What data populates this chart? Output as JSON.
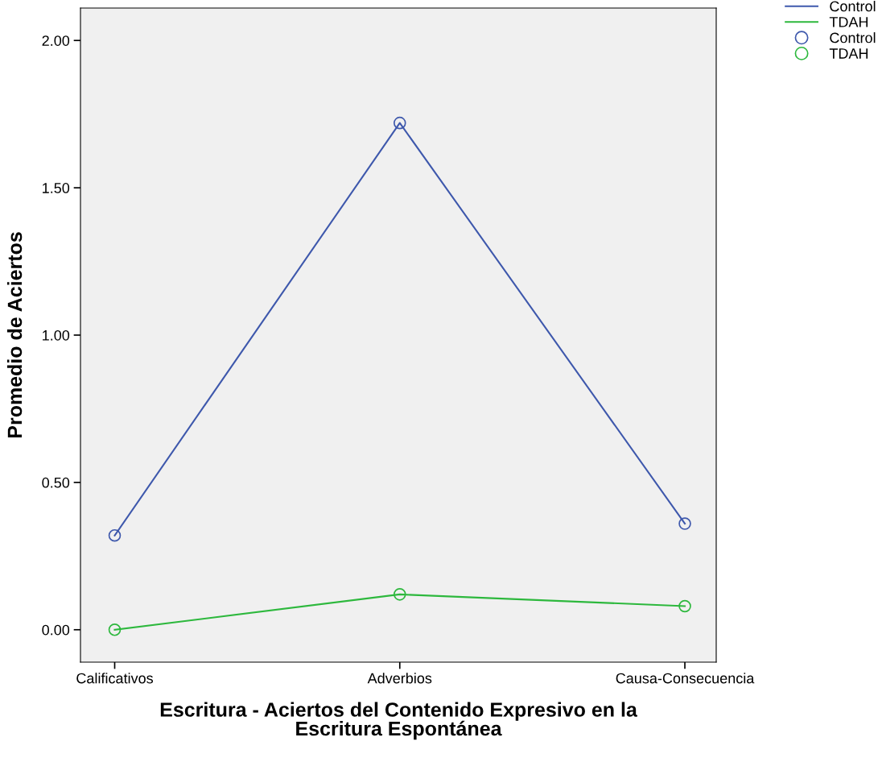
{
  "chart_data": {
    "type": "line",
    "xlabel": "Escritura - Aciertos del Contenido Expresivo en la\nEscritura Espontánea",
    "ylabel": "Promedio de Aciertos",
    "categories": [
      "Calificativos",
      "Adverbios",
      "Causa-Consecuencia"
    ],
    "series": [
      {
        "name": "Control",
        "color": "#3e58ac",
        "values": [
          0.32,
          1.72,
          0.36
        ]
      },
      {
        "name": "TDAH",
        "color": "#2db83d",
        "values": [
          0.0,
          0.12,
          0.08
        ]
      }
    ],
    "ylim": [
      -0.11,
      2.11
    ],
    "yticks": [
      {
        "value": 0,
        "label": "0.00"
      },
      {
        "value": 0.5,
        "label": "0.50"
      },
      {
        "value": 1,
        "label": "1.00"
      },
      {
        "value": 1.5,
        "label": "1.50"
      },
      {
        "value": 2,
        "label": "2.00"
      }
    ],
    "marker": "circle",
    "line_style": "solid",
    "grid": false,
    "legend": "top right"
  }
}
